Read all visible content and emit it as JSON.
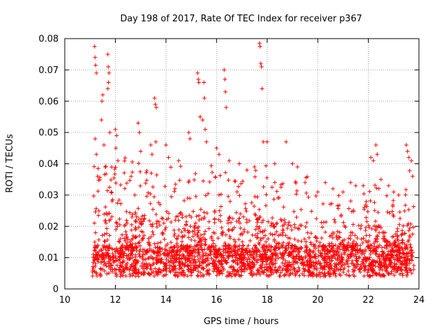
{
  "chart_data": {
    "type": "scatter",
    "title": "Day 198 of 2017, Rate Of TEC Index for receiver p367",
    "xlabel": "GPS time / hours",
    "ylabel": "ROTI / TECUs",
    "xlim": [
      10,
      24
    ],
    "ylim": [
      0,
      0.08
    ],
    "x_ticks": [
      10,
      12,
      14,
      16,
      18,
      20,
      22,
      24
    ],
    "x_tick_labels": [
      "10",
      "12",
      "14",
      "16",
      "18",
      "20",
      "22",
      "24"
    ],
    "y_ticks": [
      0,
      0.01,
      0.02,
      0.03,
      0.04,
      0.05,
      0.06,
      0.07,
      0.08
    ],
    "y_tick_labels": [
      "0",
      "0.01",
      "0.02",
      "0.03",
      "0.04",
      "0.05",
      "0.06",
      "0.07",
      "0.08"
    ],
    "grid": true,
    "marker": "+",
    "color": "#ff0000",
    "series": [
      {
        "name": "ROTI",
        "points": [
          [
            11.18,
            0.0775
          ],
          [
            11.2,
            0.074
          ],
          [
            11.22,
            0.0715
          ],
          [
            11.25,
            0.069
          ],
          [
            11.2,
            0.048
          ],
          [
            11.25,
            0.043
          ],
          [
            11.3,
            0.036
          ],
          [
            11.45,
            0.054
          ],
          [
            11.47,
            0.06
          ],
          [
            11.5,
            0.062
          ],
          [
            11.55,
            0.046
          ],
          [
            11.6,
            0.039
          ],
          [
            11.7,
            0.075
          ],
          [
            11.72,
            0.071
          ],
          [
            11.75,
            0.069
          ],
          [
            11.73,
            0.066
          ],
          [
            11.7,
            0.064
          ],
          [
            11.78,
            0.05
          ],
          [
            12.0,
            0.051
          ],
          [
            12.05,
            0.049
          ],
          [
            12.02,
            0.045
          ],
          [
            12.1,
            0.041
          ],
          [
            12.9,
            0.053
          ],
          [
            12.95,
            0.05
          ],
          [
            13.0,
            0.044
          ],
          [
            13.4,
            0.046
          ],
          [
            13.45,
            0.043
          ],
          [
            13.55,
            0.061
          ],
          [
            13.58,
            0.059
          ],
          [
            13.62,
            0.058
          ],
          [
            13.6,
            0.047
          ],
          [
            14.0,
            0.046
          ],
          [
            14.1,
            0.042
          ],
          [
            14.5,
            0.041
          ],
          [
            14.9,
            0.05
          ],
          [
            14.95,
            0.048
          ],
          [
            15.25,
            0.069
          ],
          [
            15.28,
            0.067
          ],
          [
            15.3,
            0.066
          ],
          [
            15.35,
            0.055
          ],
          [
            15.5,
            0.066
          ],
          [
            15.52,
            0.061
          ],
          [
            15.45,
            0.054
          ],
          [
            15.55,
            0.051
          ],
          [
            15.6,
            0.047
          ],
          [
            16.0,
            0.045
          ],
          [
            16.1,
            0.043
          ],
          [
            16.3,
            0.07
          ],
          [
            16.33,
            0.067
          ],
          [
            16.35,
            0.063
          ],
          [
            16.38,
            0.058
          ],
          [
            16.5,
            0.041
          ],
          [
            16.9,
            0.04
          ],
          [
            17.2,
            0.038
          ],
          [
            17.5,
            0.039
          ],
          [
            17.7,
            0.0785
          ],
          [
            17.72,
            0.0775
          ],
          [
            17.75,
            0.072
          ],
          [
            17.78,
            0.071
          ],
          [
            17.8,
            0.064
          ],
          [
            17.85,
            0.047
          ],
          [
            18.0,
            0.047
          ],
          [
            18.3,
            0.04
          ],
          [
            18.75,
            0.047
          ],
          [
            19.0,
            0.04
          ],
          [
            19.2,
            0.039
          ],
          [
            19.5,
            0.034
          ],
          [
            20.0,
            0.031
          ],
          [
            20.3,
            0.034
          ],
          [
            20.6,
            0.032
          ],
          [
            21.0,
            0.031
          ],
          [
            21.3,
            0.034
          ],
          [
            21.5,
            0.033
          ],
          [
            21.8,
            0.033
          ],
          [
            22.1,
            0.042
          ],
          [
            22.2,
            0.041
          ],
          [
            22.3,
            0.046
          ],
          [
            22.35,
            0.043
          ],
          [
            22.5,
            0.035
          ],
          [
            22.8,
            0.033
          ],
          [
            23.0,
            0.031
          ],
          [
            23.2,
            0.03
          ],
          [
            23.5,
            0.046
          ],
          [
            23.55,
            0.044
          ],
          [
            23.6,
            0.042
          ],
          [
            23.7,
            0.041
          ],
          [
            23.75,
            0.036
          ]
        ]
      }
    ]
  }
}
